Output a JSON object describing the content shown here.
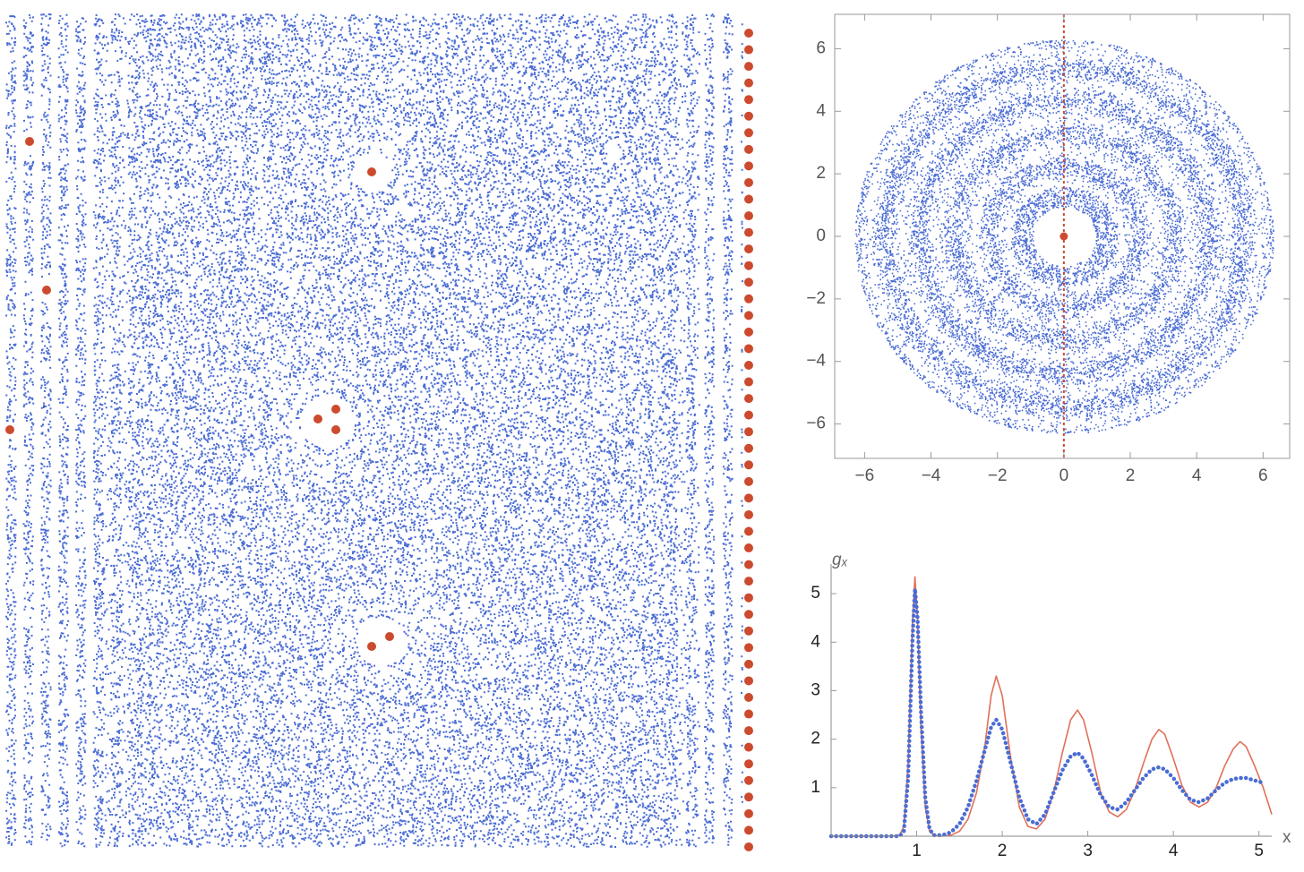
{
  "chart_data": [
    {
      "type": "scatter",
      "xlim": [
        -6.9,
        6.8
      ],
      "ylim": [
        -7.1,
        7.1
      ],
      "xticks": [
        {
          "value": -6,
          "label": "−6"
        },
        {
          "value": -4,
          "label": "−4"
        },
        {
          "value": -2,
          "label": "−2"
        },
        0,
        2,
        4,
        6
      ],
      "yticks": [
        {
          "value": -6,
          "label": "−6"
        },
        {
          "value": -4,
          "label": "−4"
        },
        {
          "value": -2,
          "label": "−2"
        },
        0,
        2,
        4,
        6
      ],
      "cloud_color": "#4a6cd4",
      "series": [
        {
          "color": "#cc4a2e",
          "x": [
            0
          ],
          "y": [
            0
          ]
        }
      ],
      "vlines": [
        0
      ],
      "vline_color": "#cc4a2e"
    },
    {
      "type": "line",
      "y_label": "gₓ",
      "x_label": "x",
      "xlim": [
        0,
        5.15
      ],
      "ylim": [
        0,
        5.5
      ],
      "xticks": [
        1,
        2,
        3,
        4,
        5
      ],
      "yticks": [
        1,
        2,
        3,
        4,
        5
      ],
      "x": [
        0,
        0.7,
        0.8,
        0.85,
        0.9,
        0.95,
        0.98,
        1.01,
        1.05,
        1.1,
        1.15,
        1.2,
        1.3,
        1.4,
        1.5,
        1.6,
        1.7,
        1.8,
        1.87,
        1.93,
        2.0,
        2.1,
        2.2,
        2.3,
        2.4,
        2.5,
        2.6,
        2.7,
        2.8,
        2.88,
        2.95,
        3.05,
        3.15,
        3.25,
        3.35,
        3.45,
        3.55,
        3.65,
        3.75,
        3.83,
        3.9,
        4.0,
        4.1,
        4.2,
        4.3,
        4.4,
        4.5,
        4.6,
        4.7,
        4.78,
        4.85,
        4.95,
        5.05,
        5.15
      ],
      "series": [
        {
          "color": "#e0705a",
          "style": "solid",
          "values": [
            0,
            0,
            0.02,
            0.2,
            1.5,
            4.4,
            5.35,
            4.5,
            2.2,
            0.6,
            0.1,
            0.02,
            0,
            0.02,
            0.1,
            0.35,
            0.9,
            1.9,
            2.9,
            3.3,
            2.9,
            1.6,
            0.6,
            0.2,
            0.15,
            0.35,
            0.9,
            1.7,
            2.4,
            2.6,
            2.4,
            1.7,
            0.9,
            0.5,
            0.4,
            0.55,
            0.95,
            1.5,
            2.0,
            2.2,
            2.1,
            1.6,
            1.05,
            0.7,
            0.6,
            0.7,
            1.0,
            1.45,
            1.8,
            1.95,
            1.85,
            1.45,
            1.0,
            0.45
          ]
        },
        {
          "color": "#4a6cd4",
          "style": "dotted",
          "values": [
            0,
            0,
            0,
            0.1,
            1.2,
            4.0,
            5.1,
            4.5,
            2.6,
            0.8,
            0.15,
            0.02,
            0.02,
            0.08,
            0.25,
            0.6,
            1.15,
            1.8,
            2.25,
            2.4,
            2.2,
            1.5,
            0.8,
            0.35,
            0.25,
            0.45,
            0.9,
            1.35,
            1.65,
            1.72,
            1.6,
            1.25,
            0.85,
            0.6,
            0.55,
            0.7,
            0.95,
            1.2,
            1.38,
            1.42,
            1.38,
            1.2,
            0.95,
            0.75,
            0.7,
            0.78,
            0.95,
            1.1,
            1.18,
            1.2,
            1.2,
            1.15,
            1.1,
            null
          ]
        }
      ]
    }
  ]
}
